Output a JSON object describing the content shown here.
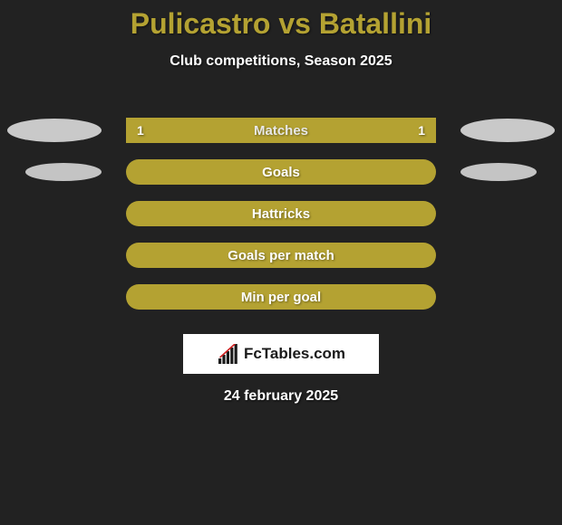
{
  "title": "Pulicastro vs Batallini",
  "subtitle": "Club competitions, Season 2025",
  "date": "24 february 2025",
  "logo_text": "FcTables.com",
  "background_color": "#222222",
  "title_color": "#b4a232",
  "text_color": "#ffffff",
  "rows": [
    {
      "label": "Matches",
      "left_value": "1",
      "right_value": "1",
      "bar_color": "#b4a232",
      "label_color": "#e8e8e8",
      "border_radius": 0,
      "left_ellipse": "major",
      "right_ellipse": "major"
    },
    {
      "label": "Goals",
      "left_value": "",
      "right_value": "",
      "bar_color": "#b4a232",
      "label_color": "#ffffff",
      "border_radius": 14,
      "left_ellipse": "minor",
      "right_ellipse": "minor"
    },
    {
      "label": "Hattricks",
      "left_value": "",
      "right_value": "",
      "bar_color": "#b4a232",
      "label_color": "#ffffff",
      "border_radius": 14,
      "left_ellipse": "",
      "right_ellipse": ""
    },
    {
      "label": "Goals per match",
      "left_value": "",
      "right_value": "",
      "bar_color": "#b4a232",
      "label_color": "#ffffff",
      "border_radius": 14,
      "left_ellipse": "",
      "right_ellipse": ""
    },
    {
      "label": "Min per goal",
      "left_value": "",
      "right_value": "",
      "bar_color": "#b4a232",
      "label_color": "#ffffff",
      "border_radius": 14,
      "left_ellipse": "",
      "right_ellipse": ""
    }
  ],
  "logo_chart": {
    "bars": [
      6,
      10,
      14,
      18,
      22
    ],
    "bar_color": "#1a1a1a",
    "line_color": "#d02020"
  }
}
